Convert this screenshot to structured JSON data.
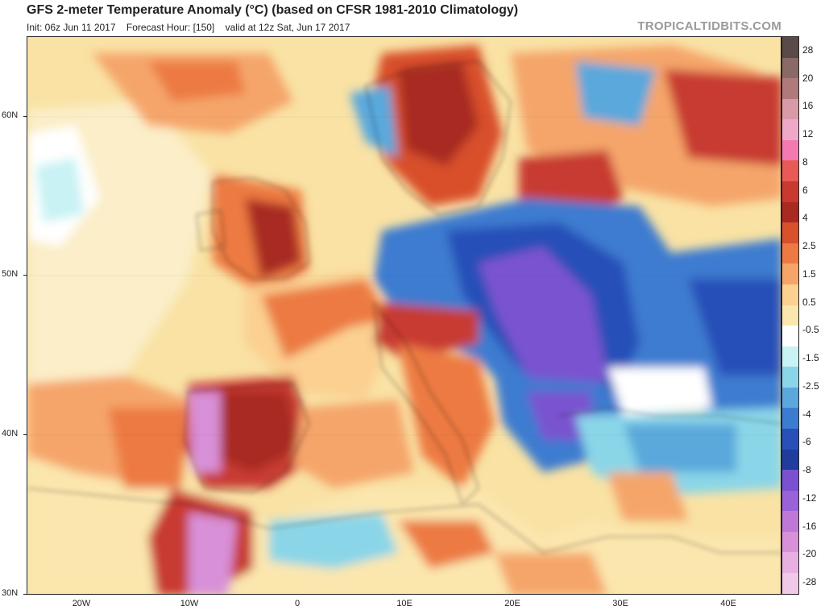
{
  "header": {
    "title": "GFS 2-meter Temperature Anomaly (°C) (based on CFSR 1981-2010 Climatology)",
    "init": "Init: 06z Jun 11 2017",
    "forecast_hour": "Forecast Hour: [150]",
    "valid": "valid at 12z Sat, Jun 17 2017",
    "brand": "TROPICALTIDBITS.COM"
  },
  "axes": {
    "lat_labels": [
      "60N",
      "50N",
      "40N",
      "30N"
    ],
    "lon_labels": [
      "20W",
      "10W",
      "0",
      "10E",
      "20E",
      "30E",
      "40E"
    ]
  },
  "colorbar": {
    "labels": [
      "28",
      "20",
      "16",
      "12",
      "8",
      "6",
      "4",
      "2.5",
      "1.5",
      "0.5",
      "-0.5",
      "-1.5",
      "-2.5",
      "-4",
      "-6",
      "-8",
      "-12",
      "-16",
      "-20",
      "-28"
    ],
    "colors": [
      "#5a4a48",
      "#8a6a66",
      "#b07a7a",
      "#d89aa6",
      "#f0a8c8",
      "#f27ab0",
      "#e85a55",
      "#c83a30",
      "#a82a20",
      "#d8502c",
      "#ec7a42",
      "#f5a56a",
      "#fbd091",
      "#fbe6ae",
      "#ffffff",
      "#c8f2f4",
      "#8ad6e8",
      "#5aa8dc",
      "#3c7cd0",
      "#2850b8",
      "#203c9c",
      "#7a52d0",
      "#9a62d8",
      "#c078d8",
      "#d890d8",
      "#e8b0e0",
      "#f0c8e8"
    ]
  }
}
